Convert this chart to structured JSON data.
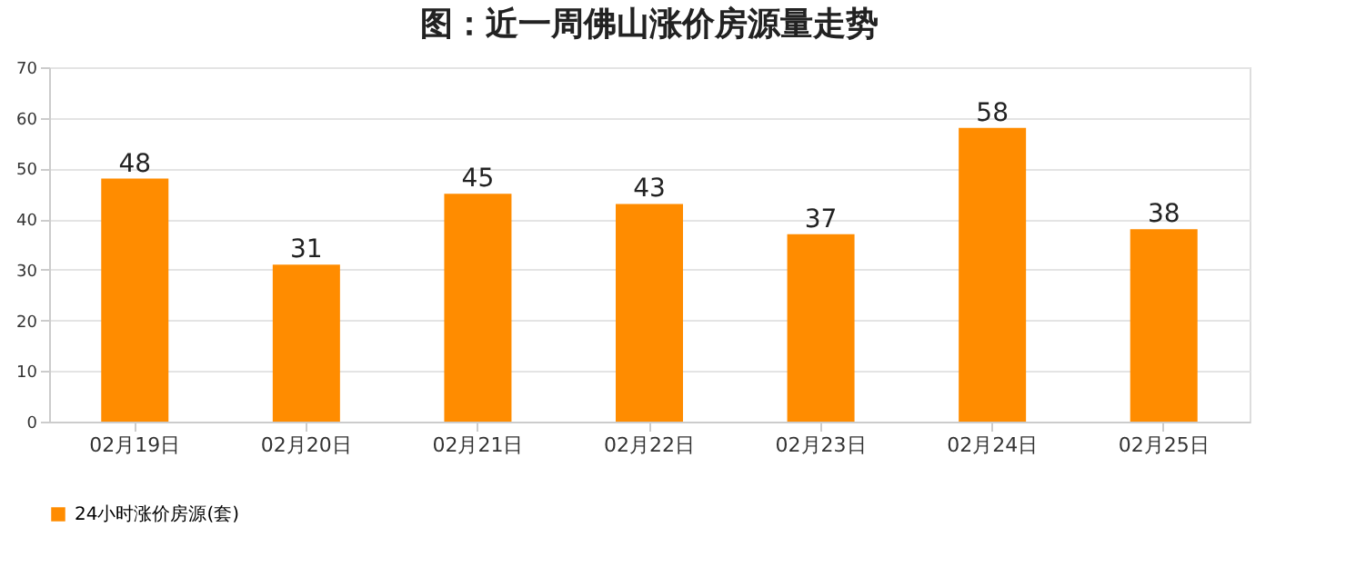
{
  "chart_data": {
    "type": "bar",
    "title": "图：近一周佛山涨价房源量走势",
    "categories": [
      "02月19日",
      "02月20日",
      "02月21日",
      "02月22日",
      "02月23日",
      "02月24日",
      "02月25日"
    ],
    "series": [
      {
        "name": "24小时涨价房源(套)",
        "color": "#ff8c00",
        "values": [
          48,
          31,
          45,
          43,
          37,
          58,
          38
        ]
      }
    ],
    "ylim": [
      0,
      70
    ],
    "yticks": [
      0,
      10,
      20,
      30,
      40,
      50,
      60,
      70
    ],
    "grid": "y",
    "legend": "bottom",
    "data_labels": true
  }
}
